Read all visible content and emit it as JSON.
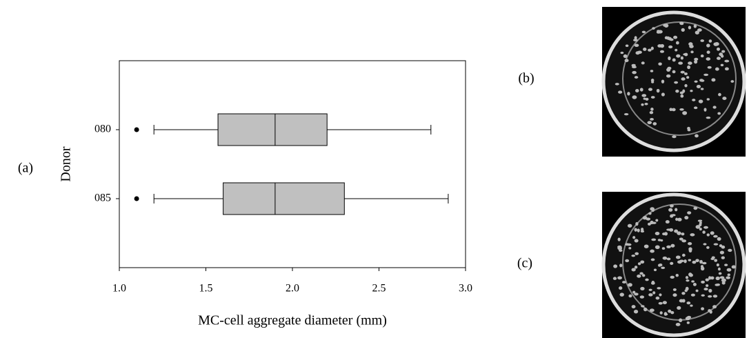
{
  "chart_data": {
    "type": "box",
    "orientation": "horizontal",
    "panel_labels": [
      "(a)",
      "(b)",
      "(c)"
    ],
    "xlabel": "MC-cell aggregate diameter (mm)",
    "ylabel": "Donor",
    "categories": [
      "080",
      "085"
    ],
    "boxes": [
      {
        "whislo": 1.2,
        "q1": 1.57,
        "med": 1.9,
        "q3": 2.2,
        "whishi": 2.8,
        "fliers": [
          1.1
        ]
      },
      {
        "whislo": 1.2,
        "q1": 1.6,
        "med": 1.9,
        "q3": 2.3,
        "whishi": 2.9,
        "fliers": [
          1.1
        ]
      }
    ],
    "color": "#c0c0c0",
    "xlim": [
      1,
      3
    ],
    "xticks": [
      {
        "value": 1,
        "label": "1.0"
      },
      1.5,
      {
        "value": 2,
        "label": "2.0"
      },
      2.5,
      {
        "value": 3,
        "label": "3.0"
      }
    ]
  }
}
